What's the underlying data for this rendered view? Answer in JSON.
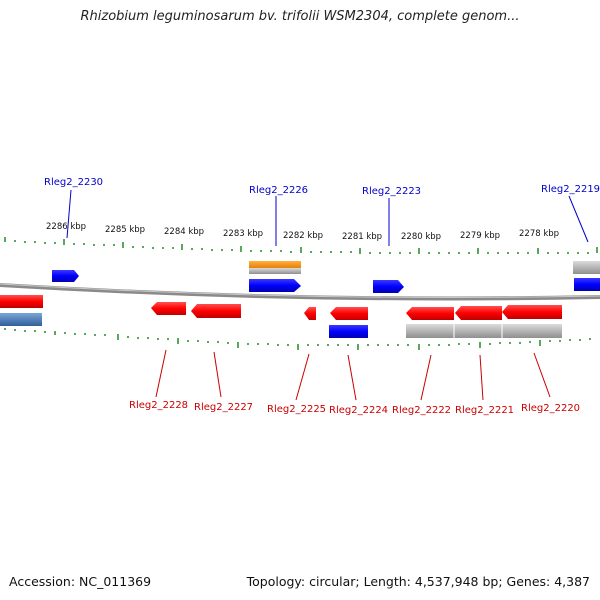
{
  "header": {
    "title": "Rhizobium leguminosarum bv. trifolii WSM2304, complete genom..."
  },
  "footer": {
    "accession": "Accession: NC_011369",
    "summary": "Topology: circular; Length: 4,537,948 bp; Genes: 4,387"
  },
  "scale_labels": [
    "2286 kbp",
    "2285 kbp",
    "2284 kbp",
    "2283 kbp",
    "2282 kbp",
    "2281 kbp",
    "2280 kbp",
    "2279 kbp",
    "2278 kbp"
  ],
  "gene_labels_top": [
    "Rleg2_2230",
    "Rleg2_2226",
    "Rleg2_2223",
    "Rleg2_2219"
  ],
  "gene_labels_bottom": [
    "Rleg2_2228",
    "Rleg2_2227",
    "Rleg2_2225",
    "Rleg2_2224",
    "Rleg2_2222",
    "Rleg2_2221",
    "Rleg2_2220"
  ],
  "colors": {
    "forward_gene": "#0000ff",
    "reverse_gene": "#ff0000",
    "rna_gene": "#ff9900",
    "pseudo_gene": "#a6a6a6",
    "backbone": "#8a8a8a",
    "ticks": "#228b22",
    "label_blue": "#0000cc",
    "label_red": "#cc0000"
  }
}
